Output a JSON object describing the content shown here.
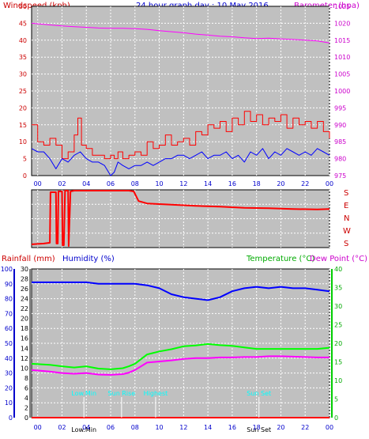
{
  "header": {
    "left_label": "Windspeed (kph)",
    "title": "24 hour graph day : 10 May 2016",
    "right_label": "Barometer (hpa)"
  },
  "colors": {
    "plot_bg": "#c0c0c0",
    "grid": "#ffffff",
    "wind_gust": "#ff0000",
    "wind_avg": "#0000ff",
    "barometer": "#ff00ff",
    "direction": "#ff0000",
    "temperature": "#00ff00",
    "dewpoint": "#ff00ff",
    "humidity": "#0000ff",
    "rainfall": "#ff0000",
    "sun_marks": "#00ffff"
  },
  "bottom_header": {
    "rainfall": "Rainfall (mm)",
    "humidity": "Humidity (%)",
    "temperature": "Temperature (°C)",
    "dewpoint": "Dew Point (°C)"
  },
  "x_tick_labels": [
    "00",
    "02",
    "04",
    "06",
    "08",
    "10",
    "12",
    "14",
    "16",
    "18",
    "20",
    "22",
    "00"
  ],
  "compass_labels": [
    "S",
    "E",
    "N",
    "W",
    "S"
  ],
  "events": [
    {
      "label": "Low.Min",
      "hour": 3.8,
      "axis_label": "Low.Min"
    },
    {
      "label": "Sun Rise",
      "hour": 6.9,
      "axis_label": ""
    },
    {
      "label": "Highest",
      "hour": 9.7,
      "axis_label": ""
    },
    {
      "label": "Sun Set",
      "hour": 18.2,
      "axis_label": "Sun Set"
    }
  ],
  "chart_data": [
    {
      "id": "wind-baro",
      "type": "line",
      "x_unit": "hour",
      "xlim": [
        -0.5,
        24
      ],
      "left_axis": {
        "label": "Windspeed (kph)",
        "ylim": [
          0,
          50
        ],
        "ticks": [
          0,
          5,
          10,
          15,
          20,
          25,
          30,
          35,
          40,
          45,
          50
        ]
      },
      "right_axis": {
        "label": "Barometer (hpa)",
        "ylim": [
          975,
          1025
        ],
        "ticks": [
          975,
          980,
          985,
          990,
          995,
          1000,
          1005,
          1010,
          1015,
          1020,
          1025
        ]
      },
      "series": [
        {
          "key": "barometer",
          "axis": "right",
          "x": [
            -0.5,
            1,
            2,
            3,
            4,
            5,
            6,
            7,
            8,
            9,
            10,
            11,
            12,
            13,
            14,
            15,
            16,
            17,
            18,
            19,
            20,
            21,
            22,
            23,
            24
          ],
          "y": [
            1020.0,
            1019.5,
            1019.2,
            1019.0,
            1018.8,
            1018.6,
            1018.5,
            1018.5,
            1018.4,
            1018.2,
            1017.8,
            1017.5,
            1017.2,
            1016.8,
            1016.5,
            1016.2,
            1016.0,
            1015.7,
            1015.5,
            1015.6,
            1015.4,
            1015.2,
            1015.0,
            1014.8,
            1014.2
          ]
        },
        {
          "key": "gust",
          "axis": "left",
          "x": [
            -0.5,
            0,
            0.5,
            1,
            1.5,
            2,
            2.5,
            3,
            3.3,
            3.6,
            4,
            4.5,
            5,
            5.5,
            6,
            6.3,
            6.6,
            7,
            7.5,
            8,
            8.5,
            9,
            9.5,
            10,
            10.5,
            11,
            11.5,
            12,
            12.5,
            13,
            13.5,
            14,
            14.5,
            15,
            15.5,
            16,
            16.5,
            17,
            17.5,
            18,
            18.5,
            19,
            19.5,
            20,
            20.5,
            21,
            21.5,
            22,
            22.5,
            23,
            23.5,
            24
          ],
          "y": [
            15,
            10,
            9,
            11,
            9,
            5,
            7,
            12,
            17,
            9,
            8,
            6,
            6,
            5,
            6,
            5,
            7,
            5,
            6,
            7,
            6,
            10,
            8,
            9,
            12,
            9,
            10,
            11,
            9,
            13,
            12,
            15,
            14,
            16,
            13,
            17,
            15,
            19,
            16,
            18,
            15,
            17,
            16,
            18,
            14,
            17,
            15,
            16,
            14,
            16,
            13,
            11
          ]
        },
        {
          "key": "average",
          "axis": "left",
          "x": [
            -0.5,
            0,
            0.5,
            1,
            1.5,
            2,
            2.5,
            3,
            3.5,
            4,
            4.5,
            5,
            5.5,
            6,
            6.3,
            6.6,
            7,
            7.5,
            8,
            8.5,
            9,
            9.5,
            10,
            10.5,
            11,
            11.5,
            12,
            12.5,
            13,
            13.5,
            14,
            14.5,
            15,
            15.5,
            16,
            16.5,
            17,
            17.5,
            18,
            18.5,
            19,
            19.5,
            20,
            20.5,
            21,
            21.5,
            22,
            22.5,
            23,
            23.5,
            24
          ],
          "y": [
            8,
            7,
            7,
            5,
            2,
            5,
            4,
            6,
            7,
            5,
            4,
            4,
            3,
            0,
            1,
            4,
            3,
            2,
            3,
            3,
            4,
            3,
            4,
            5,
            5,
            6,
            6,
            5,
            6,
            7,
            5,
            6,
            6,
            7,
            5,
            6,
            4,
            7,
            6,
            8,
            5,
            7,
            6,
            8,
            7,
            6,
            7,
            6,
            8,
            7,
            6
          ]
        }
      ]
    },
    {
      "id": "direction",
      "type": "line",
      "x_unit": "hour",
      "xlim": [
        -0.5,
        24
      ],
      "y_axis": {
        "ylim": [
          0,
          360
        ]
      },
      "series": [
        {
          "key": "direction",
          "x": [
            -0.5,
            0.5,
            1.0,
            1.05,
            1.5,
            1.55,
            1.65,
            1.7,
            2.0,
            2.05,
            2.15,
            2.25,
            2.5,
            2.55,
            2.7,
            3.0,
            5,
            7.5,
            7.9,
            8.3,
            9,
            11,
            13,
            15,
            17,
            19,
            21,
            23,
            24
          ],
          "y": [
            20,
            25,
            30,
            345,
            345,
            25,
            25,
            350,
            350,
            15,
            15,
            355,
            355,
            10,
            350,
            355,
            355,
            355,
            350,
            290,
            275,
            268,
            260,
            255,
            248,
            245,
            240,
            238,
            240
          ]
        }
      ]
    },
    {
      "id": "temp-hum",
      "type": "line",
      "x_unit": "hour",
      "xlim": [
        -0.5,
        24
      ],
      "left_axis": {
        "label": "Humidity (%)",
        "ylim": [
          0,
          100
        ],
        "ticks": [
          0,
          10,
          20,
          30,
          40,
          50,
          60,
          70,
          80,
          90,
          100
        ]
      },
      "rain_axis": {
        "label": "Rainfall (mm)",
        "ylim": [
          0,
          30
        ],
        "ticks": [
          0,
          2,
          4,
          6,
          8,
          10,
          12,
          14,
          16,
          18,
          20,
          22,
          24,
          26,
          28,
          30
        ]
      },
      "right_axis": {
        "label": "Temperature (°C)",
        "ylim": [
          0,
          40
        ],
        "ticks": [
          0,
          5,
          10,
          15,
          20,
          25,
          30,
          35,
          40
        ]
      },
      "series": [
        {
          "key": "humidity",
          "axis": "left",
          "x": [
            -0.5,
            1,
            2,
            3,
            4,
            5,
            6,
            7,
            8,
            9,
            10,
            11,
            12,
            13,
            14,
            15,
            16,
            17,
            18,
            19,
            20,
            21,
            22,
            23,
            24
          ],
          "y": [
            91,
            91,
            91,
            91,
            91,
            90,
            90,
            90,
            90,
            89,
            87,
            83,
            81,
            80,
            79,
            81,
            85,
            87,
            88,
            87,
            88,
            87,
            87,
            86,
            85
          ]
        },
        {
          "key": "temperature",
          "axis": "right",
          "x": [
            -0.5,
            1,
            2,
            3,
            4,
            5,
            6,
            7,
            7.5,
            8,
            9,
            10,
            11,
            12,
            13,
            14,
            15,
            16,
            17,
            18,
            19,
            20,
            21,
            22,
            23,
            24
          ],
          "y": [
            14.5,
            14.2,
            13.8,
            13.5,
            13.8,
            13.2,
            13.0,
            13.3,
            13.8,
            14.5,
            17.0,
            17.8,
            18.4,
            19.2,
            19.4,
            19.8,
            19.5,
            19.3,
            18.9,
            18.5,
            18.5,
            18.5,
            18.5,
            18.5,
            18.5,
            18.8
          ]
        },
        {
          "key": "dewpoint",
          "axis": "right",
          "x": [
            -0.5,
            1,
            2,
            3,
            4,
            5,
            6,
            7,
            7.5,
            8,
            9,
            10,
            11,
            12,
            13,
            14,
            15,
            16,
            17,
            18,
            19,
            20,
            21,
            22,
            23,
            24
          ],
          "y": [
            12.8,
            12.4,
            12.0,
            11.8,
            12.0,
            11.6,
            11.5,
            11.7,
            12.1,
            12.8,
            14.8,
            15.1,
            15.4,
            15.8,
            16.0,
            16.0,
            16.2,
            16.2,
            16.3,
            16.3,
            16.5,
            16.5,
            16.4,
            16.3,
            16.2,
            16.2
          ]
        },
        {
          "key": "rainfall",
          "axis": "rain",
          "x": [
            -0.5,
            24
          ],
          "y": [
            0,
            0
          ]
        }
      ]
    }
  ]
}
